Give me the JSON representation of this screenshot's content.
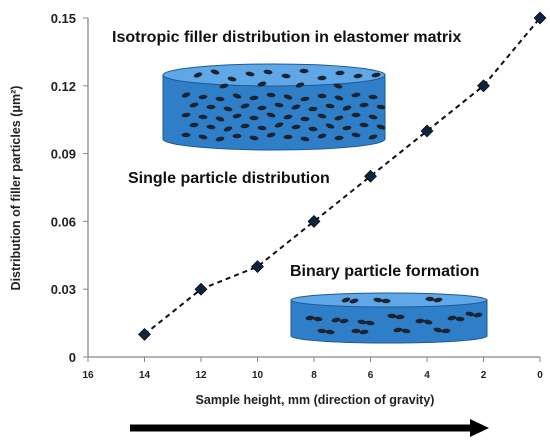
{
  "chart_data": {
    "type": "scatter",
    "title": "",
    "xlabel": "Sample height, mm (direction of gravity)",
    "ylabel": "Distribution of filler particles (μm²)",
    "x_reversed": true,
    "xlim": [
      16,
      0
    ],
    "ylim": [
      0,
      0.15
    ],
    "xticks": [
      "16",
      "14",
      "12",
      "10",
      "8",
      "6",
      "4",
      "2",
      "0"
    ],
    "yticks": [
      "0",
      "0.03",
      "0.06",
      "0.09",
      "0.12",
      "0.15"
    ],
    "grid": false,
    "series": [
      {
        "style": "dashed line with diamond markers",
        "x": [
          14,
          12,
          10,
          8,
          6,
          4,
          2,
          0
        ],
        "y": [
          0.01,
          0.03,
          0.04,
          0.06,
          0.08,
          0.1,
          0.12,
          0.15
        ]
      }
    ],
    "annotations": [
      "Isotropic filler distribution in elastomer matrix",
      "Single particle distribution",
      "Binary particle formation"
    ]
  },
  "colors": {
    "line": "#111111",
    "marker": "#0d2340",
    "disk_fill": "#2f7fc8",
    "disk_top": "#5fa7e6",
    "particle": "#1c2330",
    "arrow": "#000000"
  }
}
